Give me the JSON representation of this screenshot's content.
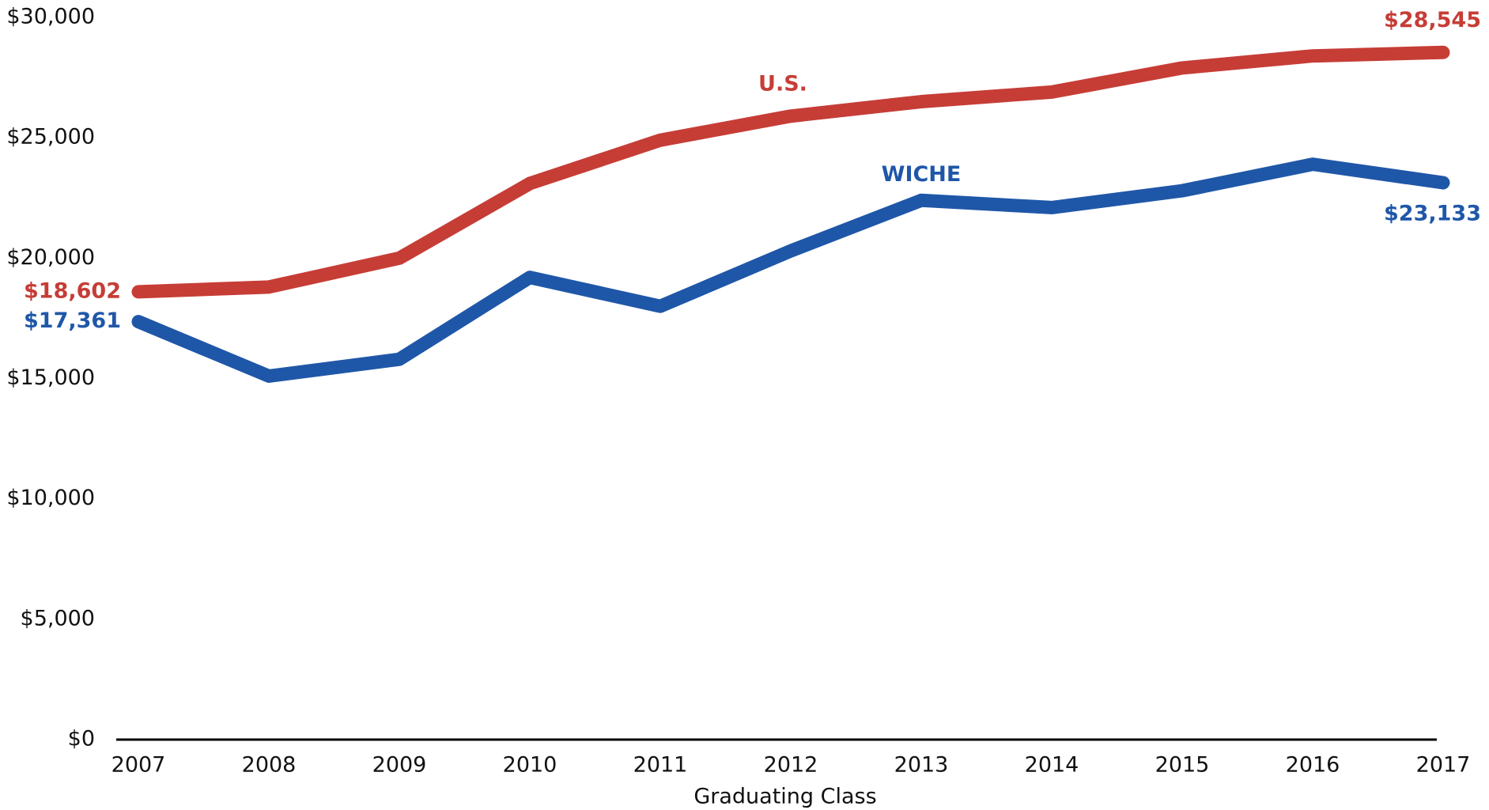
{
  "chart_data": {
    "type": "line",
    "x_label": "Graduating Class",
    "categories": [
      "2007",
      "2008",
      "2009",
      "2010",
      "2011",
      "2012",
      "2013",
      "2014",
      "2015",
      "2016",
      "2017"
    ],
    "series": [
      {
        "name": "U.S.",
        "color": "#c63d36",
        "values": [
          18602,
          18800,
          20000,
          23100,
          24900,
          25900,
          26500,
          26900,
          27900,
          28400,
          28545
        ],
        "value_labels": [
          "$18,602",
          null,
          null,
          null,
          null,
          null,
          null,
          null,
          null,
          null,
          "$28,545"
        ]
      },
      {
        "name": "WICHE",
        "color": "#1f57a8",
        "values": [
          17361,
          15100,
          15800,
          19200,
          18000,
          20300,
          22400,
          22100,
          22800,
          23900,
          23133
        ],
        "value_labels": [
          "$17,361",
          null,
          null,
          null,
          null,
          null,
          null,
          null,
          null,
          null,
          "$23,133"
        ]
      }
    ],
    "ylim": [
      0,
      30000
    ],
    "yticks": [
      {
        "value": 0,
        "label": "$0"
      },
      {
        "value": 5000,
        "label": "$5,000"
      },
      {
        "value": 10000,
        "label": "$10,000"
      },
      {
        "value": 15000,
        "label": "$15,000"
      },
      {
        "value": 20000,
        "label": "$20,000"
      },
      {
        "value": 25000,
        "label": "$25,000"
      },
      {
        "value": 30000,
        "label": "$30,000"
      }
    ],
    "grid": false
  }
}
